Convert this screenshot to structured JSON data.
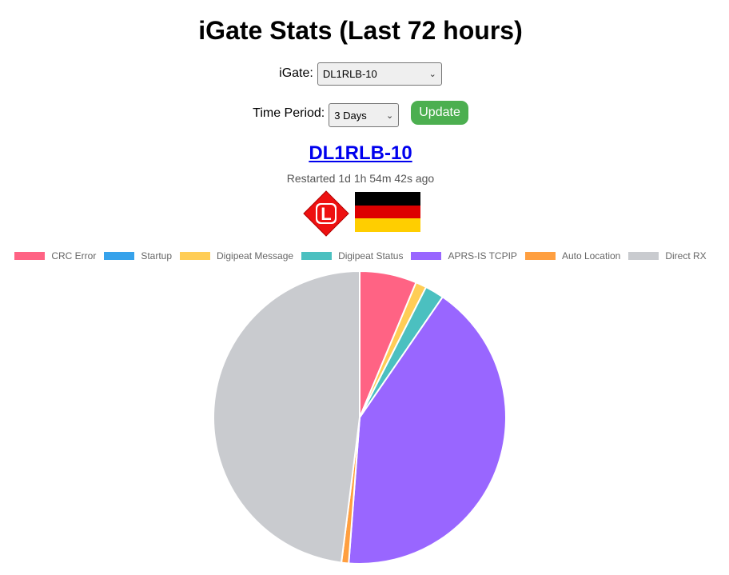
{
  "header": {
    "title": "iGate Stats (Last 72 hours)"
  },
  "form": {
    "igate_label": "iGate:",
    "igate_selected": "DL1RLB-10",
    "period_label": "Time Period:",
    "period_selected": "3 Days",
    "update_label": "Update"
  },
  "station": {
    "callsign": "DL1RLB-10",
    "restart_text": "Restarted 1d 1h 54m 42s ago",
    "symbol_icon": "aprs-symbol-L-icon",
    "symbol_letter": "L",
    "flag_icon": "germany-flag-icon"
  },
  "legend": [
    {
      "label": "CRC Error",
      "color": "#ff6384"
    },
    {
      "label": "Startup",
      "color": "#36a2eb"
    },
    {
      "label": "Digipeat Message",
      "color": "#ffcd56"
    },
    {
      "label": "Digipeat Status",
      "color": "#4bc0c0"
    },
    {
      "label": "APRS-IS TCPIP",
      "color": "#9966ff"
    },
    {
      "label": "Auto Location",
      "color": "#ff9f40"
    },
    {
      "label": "Direct RX",
      "color": "#c9cbcf"
    }
  ],
  "chart_data": {
    "type": "pie",
    "categories": [
      "CRC Error",
      "Startup",
      "Digipeat Message",
      "Digipeat Status",
      "APRS-IS TCPIP",
      "Auto Location",
      "Direct RX"
    ],
    "values": [
      6.3,
      0,
      1.2,
      2.1,
      41.6,
      0.8,
      48.0
    ],
    "colors": [
      "#ff6384",
      "#36a2eb",
      "#ffcd56",
      "#4bc0c0",
      "#9966ff",
      "#ff9f40",
      "#c9cbcf"
    ],
    "legend_position": "top"
  }
}
